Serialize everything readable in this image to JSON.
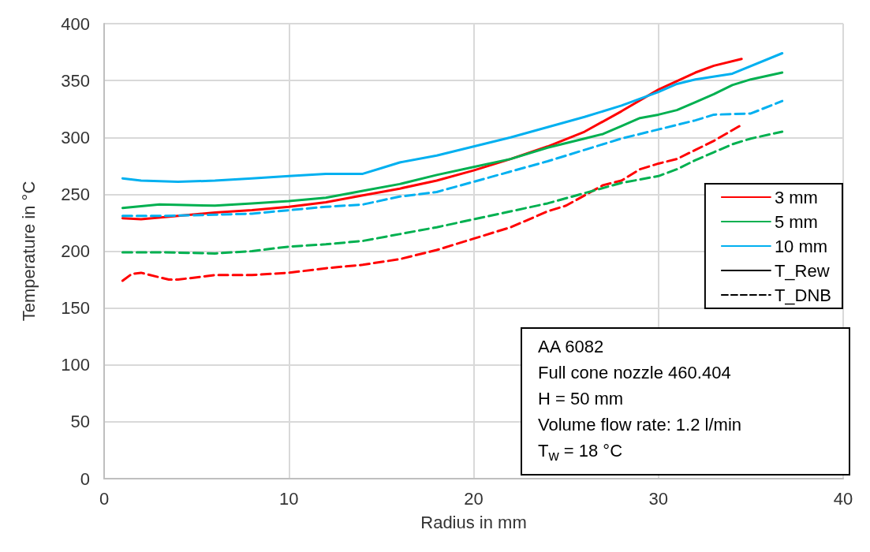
{
  "chart_data": {
    "type": "line",
    "xlabel": "Radius in mm",
    "ylabel": "Temperature in °C",
    "xlim": [
      0,
      40
    ],
    "xticks": [
      0,
      10,
      20,
      30,
      40
    ],
    "ylim": [
      0,
      400
    ],
    "yticks": [
      0,
      50,
      100,
      150,
      200,
      250,
      300,
      350,
      400
    ],
    "grid": true,
    "legend": "right",
    "marker": "none",
    "annotations": [
      "AA 6082",
      "Full cone nozzle 460.404",
      "H = 50 mm",
      "Volume flow rate: 1.2 l/min",
      "T$_{w}$ = 18 °C"
    ],
    "series": [
      {
        "name": "3 mm",
        "color": "#ff0000",
        "line_style": "solid",
        "x": [
          1,
          2,
          4,
          6,
          8,
          10,
          12,
          14,
          16,
          18,
          20,
          22,
          24,
          26,
          28,
          30,
          32,
          33,
          34.5
        ],
        "values": [
          229,
          228,
          231,
          234,
          236,
          239,
          243,
          249,
          255,
          262,
          271,
          281,
          292,
          305,
          323,
          342,
          357,
          363,
          369
        ]
      },
      {
        "name": "5 mm",
        "color": "#00b050",
        "line_style": "solid",
        "x": [
          1,
          3,
          6,
          8,
          10,
          12,
          14,
          16,
          18,
          20,
          22,
          24,
          26,
          27,
          28,
          29,
          30,
          31,
          32,
          33,
          34,
          35,
          36.7
        ],
        "values": [
          238,
          241,
          240,
          242,
          244,
          247,
          253,
          259,
          267,
          274,
          281,
          291,
          299,
          303,
          310,
          317,
          320,
          324,
          331,
          338,
          346,
          351,
          357
        ]
      },
      {
        "name": "10 mm",
        "color": "#00b0f0",
        "line_style": "solid",
        "x": [
          1,
          2,
          4,
          6,
          8,
          10,
          12,
          14,
          15,
          16,
          18,
          20,
          22,
          24,
          26,
          28,
          30,
          31,
          32,
          34,
          36.7
        ],
        "values": [
          264,
          262,
          261,
          262,
          264,
          266,
          268,
          268,
          273,
          278,
          284,
          292,
          300,
          309,
          318,
          328,
          340,
          347,
          351,
          356,
          374
        ]
      },
      {
        "name": "T_Rew",
        "color": "#000000",
        "line_style": "solid"
      },
      {
        "name": "T_DNB",
        "color": "#000000",
        "line_style": "dashed"
      },
      {
        "color": "#ff0000",
        "line_style": "dashed",
        "x": [
          1,
          1.5,
          2,
          3.5,
          4,
          6,
          8,
          10,
          12,
          14,
          16,
          18,
          20,
          22,
          24,
          25,
          26,
          27,
          28,
          29,
          30,
          31,
          32,
          33,
          34.5
        ],
        "values": [
          174,
          180,
          181,
          175,
          175,
          179,
          179,
          181,
          185,
          188,
          193,
          201,
          211,
          221,
          235,
          240,
          249,
          258,
          262,
          272,
          277,
          281,
          289,
          297,
          311
        ]
      },
      {
        "color": "#00b050",
        "line_style": "dashed",
        "x": [
          1,
          3,
          6,
          8,
          10,
          12,
          14,
          16,
          18,
          20,
          22,
          24,
          26,
          28,
          30,
          31,
          32,
          33,
          34,
          35,
          36.7
        ],
        "values": [
          199,
          199,
          198,
          200,
          204,
          206,
          209,
          215,
          221,
          228,
          235,
          242,
          251,
          260,
          266,
          272,
          280,
          287,
          294,
          299,
          305
        ]
      },
      {
        "color": "#00b0f0",
        "line_style": "dashed",
        "x": [
          1,
          3,
          6,
          8,
          10,
          12,
          14,
          16,
          18,
          20,
          22,
          24,
          26,
          28,
          30,
          32,
          33,
          35,
          36.7
        ],
        "values": [
          231,
          231,
          232,
          233,
          236,
          239,
          241,
          248,
          252,
          261,
          270,
          279,
          289,
          299,
          307,
          315,
          320,
          321,
          332
        ]
      }
    ]
  }
}
